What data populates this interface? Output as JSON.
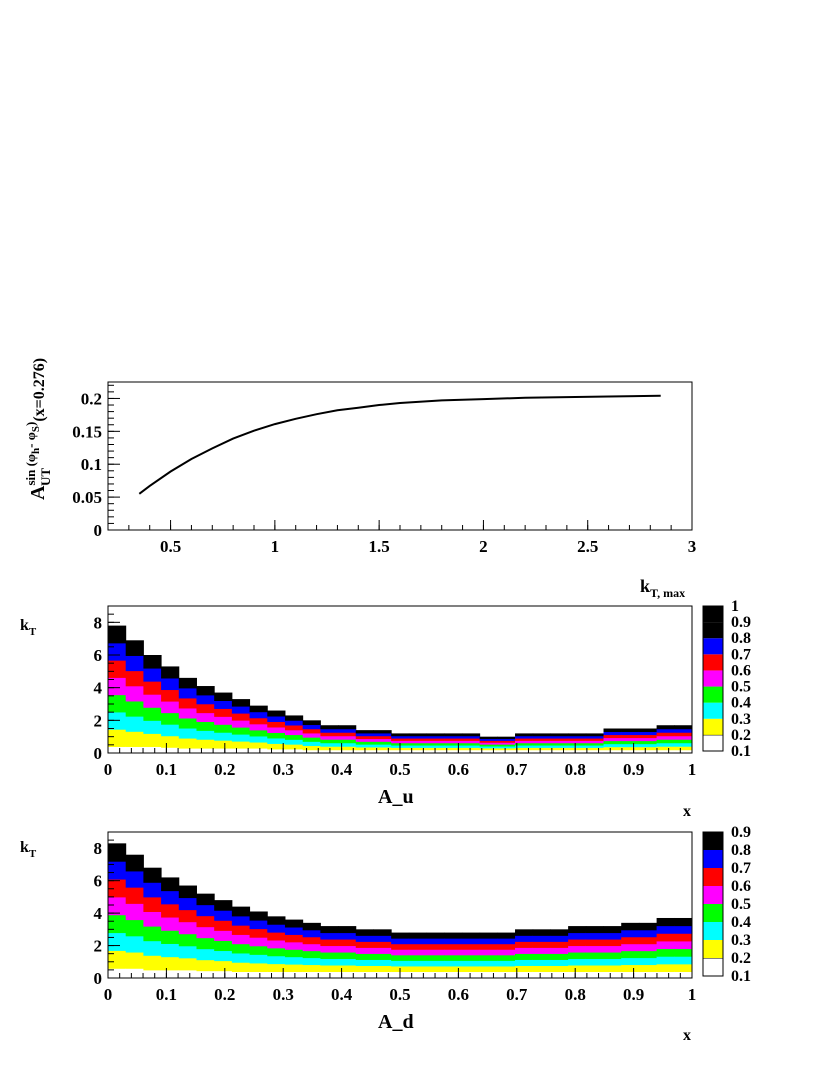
{
  "chart_data": [
    {
      "type": "line",
      "xlabel": "k_T, max",
      "ylabel_parts": {
        "main": "A",
        "sup": "sin (φ",
        "sup_h": "h",
        "sup_minus": "- φ",
        "sup_S": "S",
        "sup_close": ")",
        "sub": "UT",
        "tail": "(x=0.276)"
      },
      "xlim": [
        0.2,
        3.0
      ],
      "ylim": [
        0,
        0.225
      ],
      "xticks": [
        "0.5",
        "1",
        "1.5",
        "2",
        "2.5",
        "3"
      ],
      "yticks": [
        "0",
        "0.05",
        "0.1",
        "0.15",
        "0.2"
      ],
      "x": [
        0.35,
        0.4,
        0.5,
        0.6,
        0.7,
        0.8,
        0.9,
        1.0,
        1.1,
        1.2,
        1.3,
        1.4,
        1.5,
        1.6,
        1.8,
        2.0,
        2.2,
        2.4,
        2.6,
        2.85
      ],
      "y": [
        0.055,
        0.067,
        0.089,
        0.108,
        0.124,
        0.139,
        0.151,
        0.161,
        0.169,
        0.176,
        0.182,
        0.186,
        0.19,
        0.193,
        0.197,
        0.199,
        0.201,
        0.202,
        0.203,
        0.204
      ]
    },
    {
      "type": "heatmap",
      "title": "A_u",
      "xlabel": "x",
      "ylabel": "k_T",
      "xlim": [
        0,
        1
      ],
      "ylim": [
        0,
        9
      ],
      "xticks": [
        "0",
        "0.1",
        "0.2",
        "0.3",
        "0.4",
        "0.5",
        "0.6",
        "0.7",
        "0.8",
        "0.9",
        "1"
      ],
      "yticks": [
        "0",
        "2",
        "4",
        "6",
        "8"
      ],
      "colorbar_labels": [
        "0.1",
        "0.2",
        "0.3",
        "0.4",
        "0.5",
        "0.6",
        "0.7",
        "0.8",
        "0.9",
        "1"
      ],
      "band_colors": [
        "#ffffff",
        "#ffff00",
        "#00ffff",
        "#00ff00",
        "#ff00ff",
        "#ff0000",
        "#0000ff",
        "#000000"
      ],
      "top_edge": [
        7.8,
        6.9,
        6.0,
        5.3,
        4.6,
        4.1,
        3.7,
        3.3,
        2.9,
        2.6,
        2.3,
        2.0,
        1.7,
        1.7,
        1.4,
        1.4,
        1.2,
        1.2,
        1.2,
        1.2,
        1.2,
        1.0,
        1.0,
        1.2,
        1.2,
        1.2,
        1.2,
        1.2,
        1.5,
        1.5,
        1.5,
        1.7,
        1.7
      ],
      "base_edge": [
        0.4,
        0.4,
        0.4,
        0.35,
        0.3,
        0.3,
        0.3,
        0.3,
        0.3,
        0.25,
        0.25,
        0.2,
        0.2,
        0.2,
        0.2,
        0.2,
        0.2,
        0.2,
        0.2,
        0.2,
        0.2,
        0.2,
        0.2,
        0.2,
        0.2,
        0.2,
        0.2,
        0.2,
        0.2,
        0.2,
        0.2,
        0.2,
        0.2
      ]
    },
    {
      "type": "heatmap",
      "title": "A_d",
      "xlabel": "x",
      "ylabel": "k_T",
      "xlim": [
        0,
        1
      ],
      "ylim": [
        0,
        9
      ],
      "xticks": [
        "0",
        "0.1",
        "0.2",
        "0.3",
        "0.4",
        "0.5",
        "0.6",
        "0.7",
        "0.8",
        "0.9",
        "1"
      ],
      "yticks": [
        "0",
        "2",
        "4",
        "6",
        "8"
      ],
      "colorbar_labels": [
        "0.1",
        "0.2",
        "0.3",
        "0.4",
        "0.5",
        "0.6",
        "0.7",
        "0.8",
        "0.9"
      ],
      "band_colors": [
        "#ffffff",
        "#ffff00",
        "#00ffff",
        "#00ff00",
        "#ff00ff",
        "#ff0000",
        "#0000ff",
        "#000000"
      ],
      "top_edge": [
        8.3,
        7.6,
        6.8,
        6.2,
        5.7,
        5.2,
        4.8,
        4.4,
        4.1,
        3.8,
        3.6,
        3.4,
        3.2,
        3.2,
        3.0,
        3.0,
        2.8,
        2.8,
        2.8,
        2.8,
        2.8,
        2.8,
        2.8,
        3.0,
        3.0,
        3.0,
        3.2,
        3.2,
        3.2,
        3.4,
        3.4,
        3.7,
        3.7
      ],
      "base_edge": [
        0.6,
        0.6,
        0.5,
        0.5,
        0.5,
        0.45,
        0.45,
        0.4,
        0.4,
        0.4,
        0.4,
        0.4,
        0.4,
        0.4,
        0.4,
        0.4,
        0.4,
        0.4,
        0.4,
        0.4,
        0.4,
        0.4,
        0.4,
        0.4,
        0.4,
        0.4,
        0.4,
        0.4,
        0.4,
        0.4,
        0.4,
        0.4,
        0.4
      ]
    }
  ]
}
